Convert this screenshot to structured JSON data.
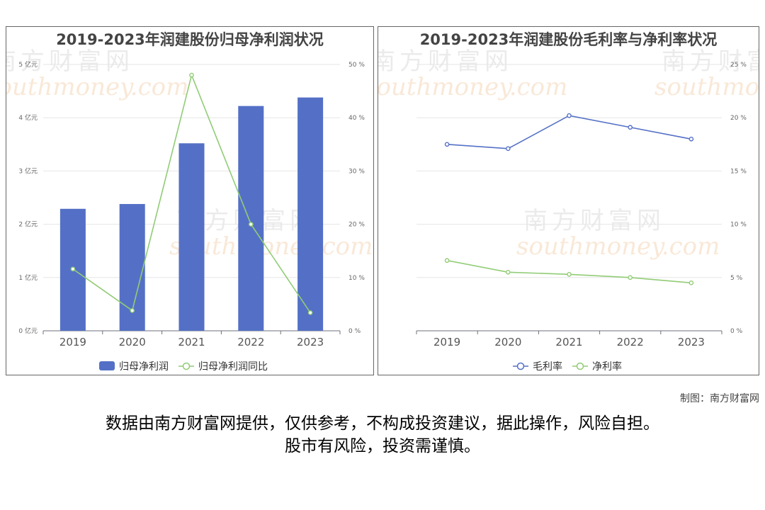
{
  "chart_data": [
    {
      "type": "bar+line",
      "title": "2019-2023年润建股份归母净利润状况",
      "categories": [
        "2019",
        "2020",
        "2021",
        "2022",
        "2023"
      ],
      "y_left": {
        "unit": "亿元",
        "ylim": [
          0,
          5
        ],
        "ticks": [
          "0 亿元",
          "1 亿元",
          "2 亿元",
          "3 亿元",
          "4 亿元",
          "5 亿元"
        ]
      },
      "y_right": {
        "unit": "%",
        "ylim": [
          0,
          50
        ],
        "ticks": [
          "0 %",
          "10 %",
          "20 %",
          "30 %",
          "40 %",
          "50 %"
        ]
      },
      "series": [
        {
          "name": "归母净利润",
          "kind": "bar",
          "axis": "left",
          "color": "#5470c6",
          "values": [
            2.29,
            2.38,
            3.52,
            4.22,
            4.38
          ]
        },
        {
          "name": "归母净利润同比",
          "kind": "line",
          "axis": "right",
          "color": "#91cc75",
          "values": [
            11.6,
            3.8,
            48.0,
            20.0,
            3.4
          ]
        }
      ],
      "legend": "bottom",
      "grid": true
    },
    {
      "type": "line",
      "title": "2019-2023年润建股份毛利率与净利率状况",
      "categories": [
        "2019",
        "2020",
        "2021",
        "2022",
        "2023"
      ],
      "y_right": {
        "unit": "%",
        "ylim": [
          0,
          25
        ],
        "ticks": [
          "0 %",
          "5 %",
          "10 %",
          "15 %",
          "20 %",
          "25 %"
        ]
      },
      "series": [
        {
          "name": "毛利率",
          "kind": "line",
          "axis": "right",
          "color": "#5470c6",
          "values": [
            17.5,
            17.1,
            20.2,
            19.1,
            18.0
          ]
        },
        {
          "name": "净利率",
          "kind": "line",
          "axis": "right",
          "color": "#91cc75",
          "values": [
            6.6,
            5.5,
            5.3,
            5.0,
            4.5
          ]
        }
      ],
      "legend": "bottom",
      "grid": true
    }
  ],
  "watermark": {
    "cn": "南方财富网",
    "en": "southmoney.com"
  },
  "credit": "制图：南方财富网",
  "disclaimer": {
    "line1": "数据由南方财富网提供，仅供参考，不构成投资建议，据此操作，风险自担。",
    "line2": "股市有风险，投资需谨慎。"
  }
}
